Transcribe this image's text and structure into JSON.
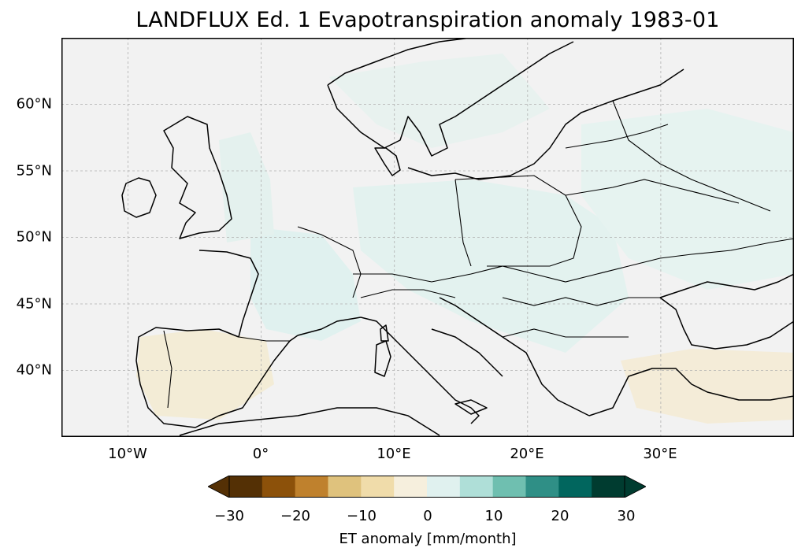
{
  "title": "LANDFLUX Ed. 1 Evapotranspiration anomaly 1983-01",
  "map": {
    "extent": {
      "lon_min": -15,
      "lon_max": 40,
      "lat_min": 35,
      "lat_max": 65
    },
    "gridlines": true,
    "lat_ticks": [
      {
        "value": 60,
        "label": "60°N"
      },
      {
        "value": 55,
        "label": "55°N"
      },
      {
        "value": 50,
        "label": "50°N"
      },
      {
        "value": 45,
        "label": "45°N"
      },
      {
        "value": 40,
        "label": "40°N"
      }
    ],
    "lon_ticks": [
      {
        "value": -10,
        "label": "10°W"
      },
      {
        "value": 0,
        "label": "0°"
      },
      {
        "value": 10,
        "label": "10°E"
      },
      {
        "value": 20,
        "label": "20°E"
      },
      {
        "value": 30,
        "label": "30°E"
      }
    ],
    "background_color": "#f2f2f2",
    "coastline_color": "#000000"
  },
  "colorbar": {
    "label": "ET anomaly [mm/month]",
    "min": -30,
    "max": 30,
    "levels": [
      -30,
      -25,
      -20,
      -15,
      -10,
      -5,
      0,
      5,
      10,
      15,
      20,
      25,
      30
    ],
    "colors": [
      "#543005",
      "#8c510a",
      "#bf812d",
      "#dfc27d",
      "#f0dcaa",
      "#f6efdd",
      "#e0f1ef",
      "#afdfd8",
      "#6fbfb0",
      "#2f8f86",
      "#01665e",
      "#003c30"
    ],
    "extend_min_color": "#543005",
    "extend_max_color": "#003c30",
    "tick_labels": [
      {
        "value": -30,
        "label": "−30"
      },
      {
        "value": -20,
        "label": "−20"
      },
      {
        "value": -10,
        "label": "−10"
      },
      {
        "value": 0,
        "label": "0"
      },
      {
        "value": 10,
        "label": "10"
      },
      {
        "value": 20,
        "label": "20"
      },
      {
        "value": 30,
        "label": "30"
      }
    ]
  }
}
